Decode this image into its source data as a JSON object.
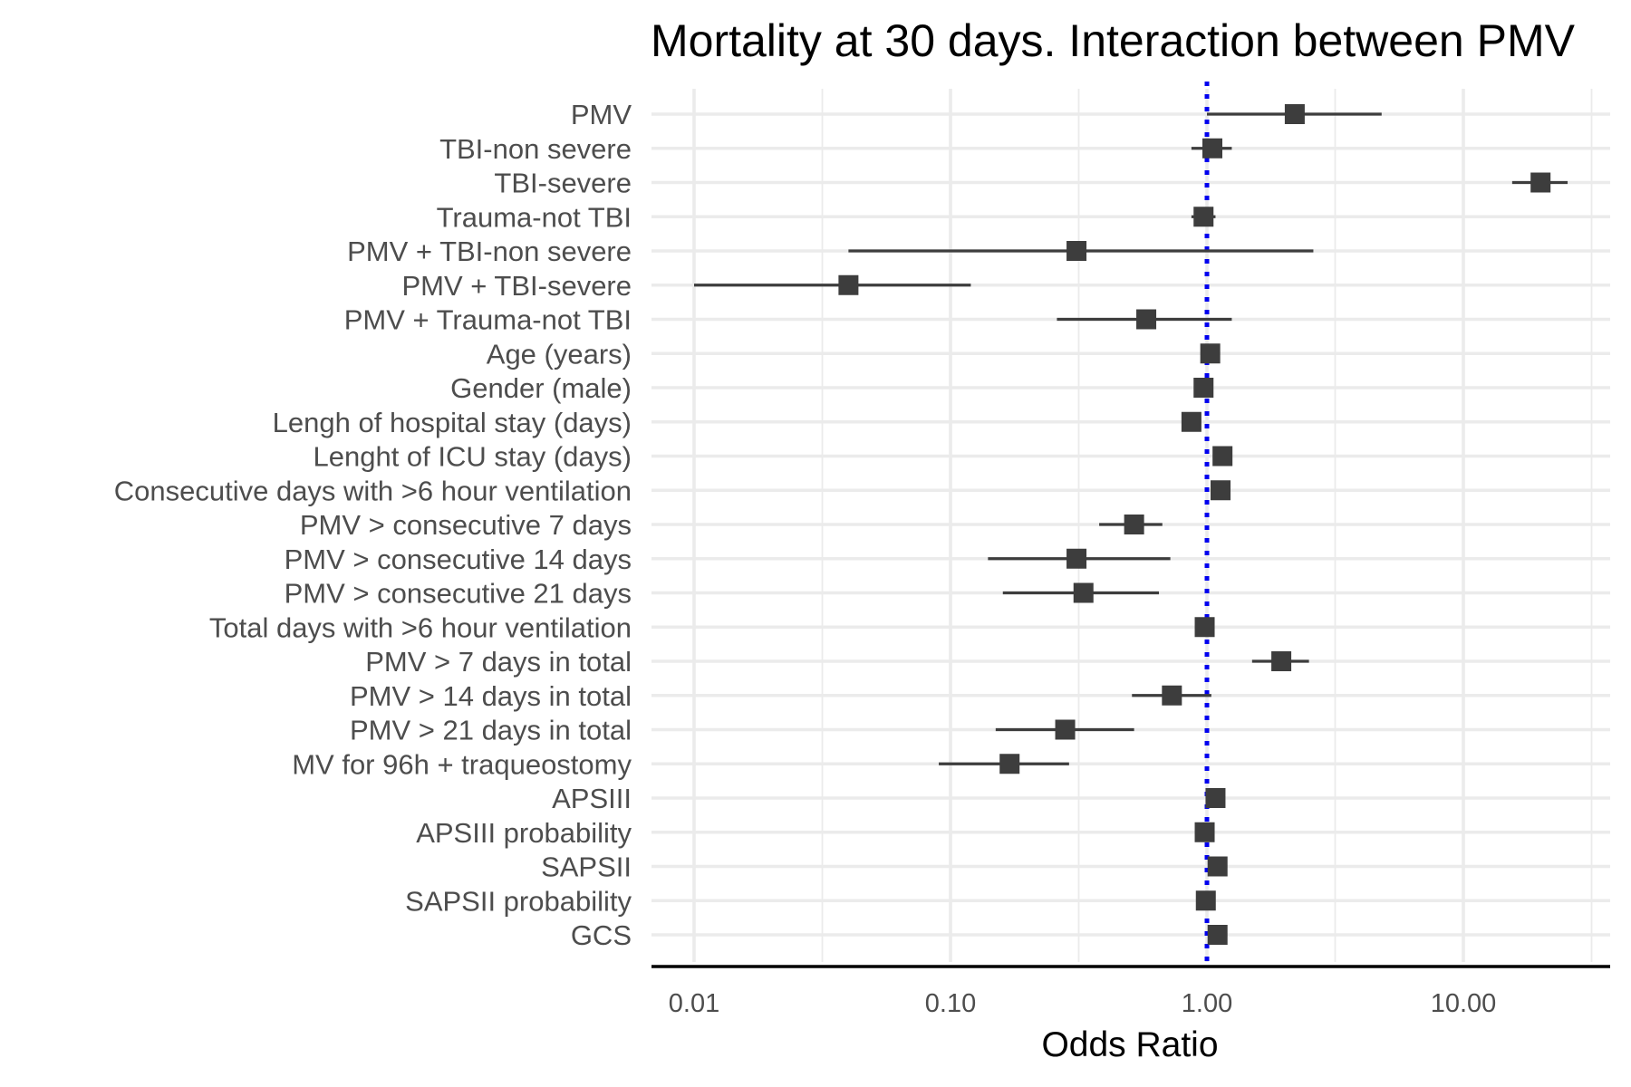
{
  "chart_data": {
    "type": "forest",
    "title": "Mortality at 30 days. Interaction between PMV",
    "xlabel": "Odds Ratio",
    "ylabel": "",
    "x_scale": "log10",
    "xlim": [
      0.0075,
      35
    ],
    "x_ticks": [
      0.01,
      0.1,
      1,
      10
    ],
    "x_tick_labels": [
      "0.01",
      "0.10",
      "1.00",
      "10.00"
    ],
    "reference_line": {
      "x": 1,
      "style": "dotted",
      "color": "#0000ee"
    },
    "marker_color": "#3d3d3d",
    "grid": true,
    "rows": [
      {
        "label": "PMV",
        "or": 2.2,
        "low": 1.0,
        "high": 4.8
      },
      {
        "label": "TBI-non severe",
        "or": 1.05,
        "low": 0.87,
        "high": 1.25
      },
      {
        "label": "TBI-severe",
        "or": 20.0,
        "low": 15.5,
        "high": 25.5
      },
      {
        "label": "Trauma-not TBI",
        "or": 0.97,
        "low": 0.87,
        "high": 1.08
      },
      {
        "label": "PMV + TBI-non severe",
        "or": 0.31,
        "low": 0.04,
        "high": 2.6
      },
      {
        "label": "PMV + TBI-severe",
        "or": 0.04,
        "low": 0.01,
        "high": 0.12
      },
      {
        "label": "PMV + Trauma-not TBI",
        "or": 0.58,
        "low": 0.26,
        "high": 1.25
      },
      {
        "label": "Age (years)",
        "or": 1.03,
        "low": 1.02,
        "high": 1.04
      },
      {
        "label": "Gender (male)",
        "or": 0.97,
        "low": 0.91,
        "high": 1.03
      },
      {
        "label": "Lengh of hospital stay (days)",
        "or": 0.87,
        "low": 0.85,
        "high": 0.89
      },
      {
        "label": "Lenght of ICU stay (days)",
        "or": 1.15,
        "low": 1.12,
        "high": 1.18
      },
      {
        "label": "Consecutive days with >6 hour ventilation",
        "or": 1.13,
        "low": 1.1,
        "high": 1.16
      },
      {
        "label": "PMV > consecutive 7 days",
        "or": 0.52,
        "low": 0.38,
        "high": 0.67
      },
      {
        "label": "PMV > consecutive 14 days",
        "or": 0.31,
        "low": 0.14,
        "high": 0.72
      },
      {
        "label": "PMV > consecutive 21 days",
        "or": 0.33,
        "low": 0.16,
        "high": 0.65
      },
      {
        "label": "Total days with >6 hour ventilation",
        "or": 0.98,
        "low": 0.97,
        "high": 0.99
      },
      {
        "label": "PMV > 7 days in total",
        "or": 1.95,
        "low": 1.5,
        "high": 2.5
      },
      {
        "label": "PMV > 14 days in total",
        "or": 0.73,
        "low": 0.51,
        "high": 1.04
      },
      {
        "label": "PMV > 21 days in total",
        "or": 0.28,
        "low": 0.15,
        "high": 0.52
      },
      {
        "label": "MV for 96h + traqueostomy",
        "or": 0.17,
        "low": 0.09,
        "high": 0.29
      },
      {
        "label": "APSIII",
        "or": 1.08,
        "low": 1.07,
        "high": 1.09
      },
      {
        "label": "APSIII probability",
        "or": 0.98,
        "low": 0.97,
        "high": 0.99
      },
      {
        "label": "SAPSII",
        "or": 1.1,
        "low": 1.09,
        "high": 1.11
      },
      {
        "label": "SAPSII probability",
        "or": 0.99,
        "low": 0.98,
        "high": 1.0
      },
      {
        "label": "GCS",
        "or": 1.1,
        "low": 1.09,
        "high": 1.11
      }
    ]
  }
}
